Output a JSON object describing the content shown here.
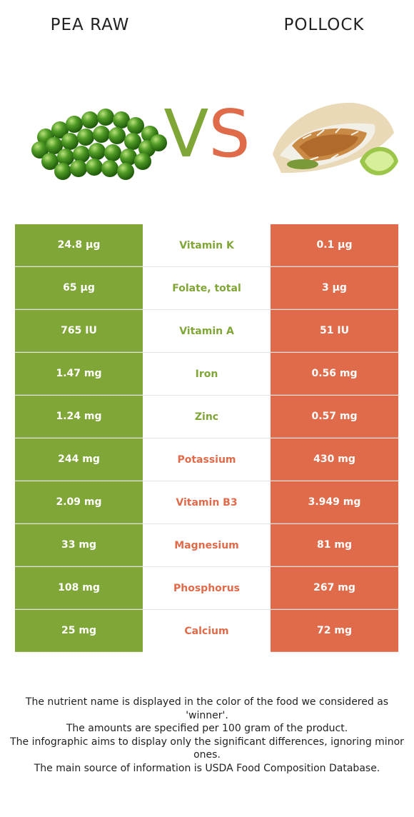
{
  "header": {
    "left_title": "PEA RAW",
    "right_title": "POLLOCK",
    "vs_v": "V",
    "vs_s": "S"
  },
  "colors": {
    "winner_left": "#80a637",
    "winner_right": "#e06b4a"
  },
  "images": {
    "left": "green-peas-image",
    "right": "pollock-taco-image"
  },
  "rows": [
    {
      "left": "24.8 µg",
      "nutrient": "Vitamin K",
      "right": "0.1 µg",
      "winner": "left"
    },
    {
      "left": "65 µg",
      "nutrient": "Folate, total",
      "right": "3 µg",
      "winner": "left"
    },
    {
      "left": "765 IU",
      "nutrient": "Vitamin A",
      "right": "51 IU",
      "winner": "left"
    },
    {
      "left": "1.47 mg",
      "nutrient": "Iron",
      "right": "0.56 mg",
      "winner": "left"
    },
    {
      "left": "1.24 mg",
      "nutrient": "Zinc",
      "right": "0.57 mg",
      "winner": "left"
    },
    {
      "left": "244 mg",
      "nutrient": "Potassium",
      "right": "430 mg",
      "winner": "right"
    },
    {
      "left": "2.09 mg",
      "nutrient": "Vitamin B3",
      "right": "3.949 mg",
      "winner": "right"
    },
    {
      "left": "33 mg",
      "nutrient": "Magnesium",
      "right": "81 mg",
      "winner": "right"
    },
    {
      "left": "108 mg",
      "nutrient": "Phosphorus",
      "right": "267 mg",
      "winner": "right"
    },
    {
      "left": "25 mg",
      "nutrient": "Calcium",
      "right": "72 mg",
      "winner": "right"
    }
  ],
  "notes": [
    "The nutrient name is displayed in the color of the food we considered as 'winner'.",
    "The amounts are specified per 100 gram of the product.",
    "The infographic aims to display only the significant differences, ignoring minor ones.",
    "The main source of information is USDA Food Composition Database."
  ]
}
